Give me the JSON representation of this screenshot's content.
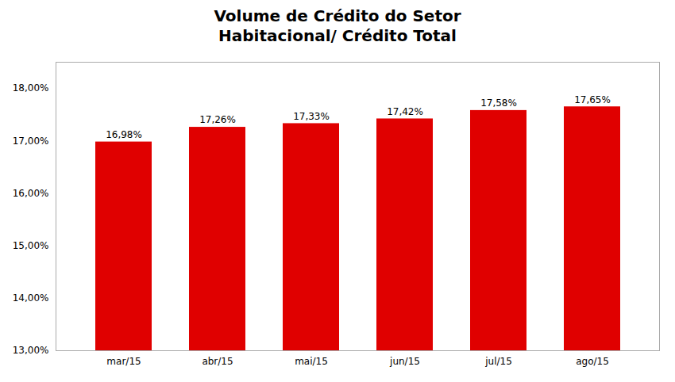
{
  "chart_data": {
    "type": "bar",
    "title": "Volume de Crédito do Setor\nHabitacional/ Crédito Total",
    "categories": [
      "mar/15",
      "abr/15",
      "mai/15",
      "jun/15",
      "jul/15",
      "ago/15"
    ],
    "values": [
      16.98,
      17.26,
      17.33,
      17.42,
      17.58,
      17.65
    ],
    "value_labels": [
      "16,98%",
      "17,26%",
      "17,33%",
      "17,42%",
      "17,58%",
      "17,65%"
    ],
    "data_labels": true,
    "color": "#e00000",
    "ylim": [
      13.0,
      18.5
    ],
    "yticks": [
      {
        "value": 13.0,
        "label": "13,00%"
      },
      {
        "value": 14.0,
        "label": "14,00%"
      },
      {
        "value": 15.0,
        "label": "15,00%"
      },
      {
        "value": 16.0,
        "label": "16,00%"
      },
      {
        "value": 17.0,
        "label": "17,00%"
      },
      {
        "value": 18.0,
        "label": "18,00%"
      }
    ],
    "grid": false
  }
}
